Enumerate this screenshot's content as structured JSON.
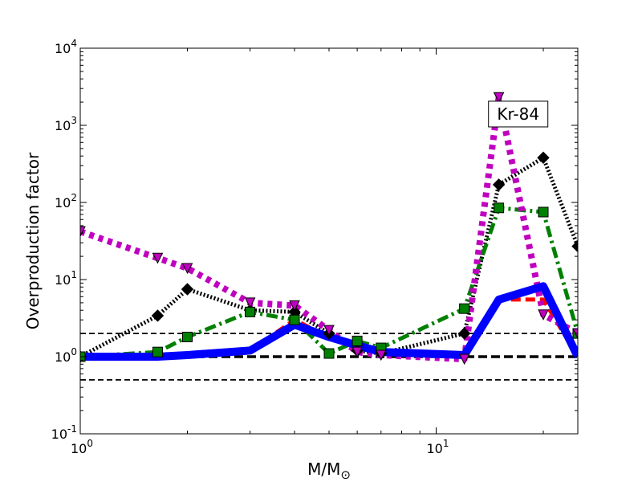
{
  "chart_data": {
    "type": "line",
    "title": "",
    "xlabel": "M/M",
    "xlabel_subscript": "⊙",
    "ylabel": "Overproduction factor",
    "xscale": "log",
    "yscale": "log",
    "xlim": [
      1,
      25
    ],
    "ylim": [
      0.1,
      10000
    ],
    "x_ticks": [
      {
        "value": 1,
        "base": "10",
        "exp": "0"
      },
      {
        "value": 10,
        "base": "10",
        "exp": "1"
      }
    ],
    "y_ticks": [
      {
        "value": 0.1,
        "base": "10",
        "exp": "-1"
      },
      {
        "value": 1,
        "base": "10",
        "exp": "0"
      },
      {
        "value": 10,
        "base": "10",
        "exp": "1"
      },
      {
        "value": 100,
        "base": "10",
        "exp": "2"
      },
      {
        "value": 1000,
        "base": "10",
        "exp": "3"
      },
      {
        "value": 10000,
        "base": "10",
        "exp": "4"
      }
    ],
    "reference_lines": [
      {
        "y": 2.0,
        "style": "dashed",
        "weight": "thin"
      },
      {
        "y": 1.0,
        "style": "dashed",
        "weight": "thick"
      },
      {
        "y": 0.5,
        "style": "dashed",
        "weight": "thin"
      }
    ],
    "annotation": {
      "text": "Kr-84",
      "x": 17.0,
      "y": 1400
    },
    "grid": false,
    "legend": "none",
    "series": [
      {
        "color": "#ff0000",
        "dash": "dashed",
        "width": 5,
        "marker": "none",
        "points": [
          [
            1,
            1.0
          ],
          [
            1.65,
            1.0
          ],
          [
            2,
            1.1
          ],
          [
            3,
            1.2
          ],
          [
            4,
            3.0
          ],
          [
            5,
            1.8
          ],
          [
            6,
            1.3
          ],
          [
            7,
            1.1
          ],
          [
            12,
            1.1
          ],
          [
            15,
            5.5
          ],
          [
            20,
            5.5
          ],
          [
            25,
            1.0
          ]
        ]
      },
      {
        "color": "#000000",
        "dash": "dotted",
        "width": 5,
        "marker": "diamond",
        "points": [
          [
            1,
            1.0
          ],
          [
            1.65,
            3.4
          ],
          [
            2,
            7.5
          ],
          [
            3,
            4.0
          ],
          [
            4,
            3.8
          ],
          [
            5,
            2.0
          ],
          [
            6,
            1.2
          ],
          [
            7,
            1.1
          ],
          [
            12,
            2.0
          ],
          [
            15,
            170
          ],
          [
            20,
            380
          ],
          [
            25,
            27
          ]
        ]
      },
      {
        "color": "#008000",
        "dash": "dashdot",
        "width": 5,
        "marker": "square",
        "points": [
          [
            1,
            1.0
          ],
          [
            1.65,
            1.15
          ],
          [
            2,
            1.8
          ],
          [
            3,
            3.8
          ],
          [
            4,
            3.0
          ],
          [
            5,
            1.1
          ],
          [
            6,
            1.6
          ],
          [
            7,
            1.3
          ],
          [
            12,
            4.2
          ],
          [
            15,
            85
          ],
          [
            20,
            75
          ],
          [
            25,
            2.0
          ]
        ]
      },
      {
        "color": "#bf00bf",
        "dash": "dotted-thick",
        "width": 8,
        "marker": "triangle-down",
        "points": [
          [
            1,
            42
          ],
          [
            1.65,
            19
          ],
          [
            2,
            14
          ],
          [
            3,
            5.0
          ],
          [
            4,
            4.6
          ],
          [
            5,
            2.2
          ],
          [
            6,
            1.15
          ],
          [
            7,
            1.05
          ],
          [
            12,
            0.93
          ],
          [
            15,
            2300
          ],
          [
            20,
            3.5
          ],
          [
            25,
            2.0
          ]
        ]
      },
      {
        "color": "#0000ff",
        "dash": "solid",
        "width": 10,
        "marker": "none",
        "points": [
          [
            1,
            1.0
          ],
          [
            1.65,
            1.0
          ],
          [
            2,
            1.05
          ],
          [
            3,
            1.2
          ],
          [
            4,
            2.6
          ],
          [
            5,
            1.8
          ],
          [
            6,
            1.4
          ],
          [
            7,
            1.15
          ],
          [
            12,
            1.05
          ],
          [
            15,
            5.5
          ],
          [
            20,
            8.2
          ],
          [
            25,
            1.0
          ]
        ]
      }
    ]
  }
}
